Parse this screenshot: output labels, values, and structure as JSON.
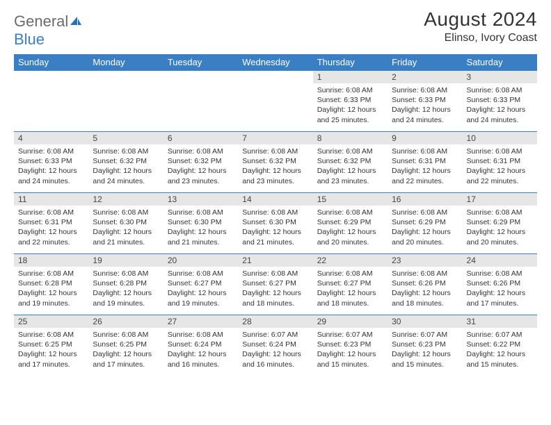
{
  "brand": {
    "part1": "General",
    "part2": "Blue"
  },
  "title": "August 2024",
  "location": "Elinso, Ivory Coast",
  "colors": {
    "header_bg": "#3a7fc4",
    "header_fg": "#ffffff",
    "daynum_bg": "#e6e6e6",
    "border": "#3a7fc4",
    "text": "#333333"
  },
  "weekdays": [
    "Sunday",
    "Monday",
    "Tuesday",
    "Wednesday",
    "Thursday",
    "Friday",
    "Saturday"
  ],
  "weeks": [
    [
      null,
      null,
      null,
      null,
      {
        "n": "1",
        "sr": "6:08 AM",
        "ss": "6:33 PM",
        "dl": "12 hours and 25 minutes."
      },
      {
        "n": "2",
        "sr": "6:08 AM",
        "ss": "6:33 PM",
        "dl": "12 hours and 24 minutes."
      },
      {
        "n": "3",
        "sr": "6:08 AM",
        "ss": "6:33 PM",
        "dl": "12 hours and 24 minutes."
      }
    ],
    [
      {
        "n": "4",
        "sr": "6:08 AM",
        "ss": "6:33 PM",
        "dl": "12 hours and 24 minutes."
      },
      {
        "n": "5",
        "sr": "6:08 AM",
        "ss": "6:32 PM",
        "dl": "12 hours and 24 minutes."
      },
      {
        "n": "6",
        "sr": "6:08 AM",
        "ss": "6:32 PM",
        "dl": "12 hours and 23 minutes."
      },
      {
        "n": "7",
        "sr": "6:08 AM",
        "ss": "6:32 PM",
        "dl": "12 hours and 23 minutes."
      },
      {
        "n": "8",
        "sr": "6:08 AM",
        "ss": "6:32 PM",
        "dl": "12 hours and 23 minutes."
      },
      {
        "n": "9",
        "sr": "6:08 AM",
        "ss": "6:31 PM",
        "dl": "12 hours and 22 minutes."
      },
      {
        "n": "10",
        "sr": "6:08 AM",
        "ss": "6:31 PM",
        "dl": "12 hours and 22 minutes."
      }
    ],
    [
      {
        "n": "11",
        "sr": "6:08 AM",
        "ss": "6:31 PM",
        "dl": "12 hours and 22 minutes."
      },
      {
        "n": "12",
        "sr": "6:08 AM",
        "ss": "6:30 PM",
        "dl": "12 hours and 21 minutes."
      },
      {
        "n": "13",
        "sr": "6:08 AM",
        "ss": "6:30 PM",
        "dl": "12 hours and 21 minutes."
      },
      {
        "n": "14",
        "sr": "6:08 AM",
        "ss": "6:30 PM",
        "dl": "12 hours and 21 minutes."
      },
      {
        "n": "15",
        "sr": "6:08 AM",
        "ss": "6:29 PM",
        "dl": "12 hours and 20 minutes."
      },
      {
        "n": "16",
        "sr": "6:08 AM",
        "ss": "6:29 PM",
        "dl": "12 hours and 20 minutes."
      },
      {
        "n": "17",
        "sr": "6:08 AM",
        "ss": "6:29 PM",
        "dl": "12 hours and 20 minutes."
      }
    ],
    [
      {
        "n": "18",
        "sr": "6:08 AM",
        "ss": "6:28 PM",
        "dl": "12 hours and 19 minutes."
      },
      {
        "n": "19",
        "sr": "6:08 AM",
        "ss": "6:28 PM",
        "dl": "12 hours and 19 minutes."
      },
      {
        "n": "20",
        "sr": "6:08 AM",
        "ss": "6:27 PM",
        "dl": "12 hours and 19 minutes."
      },
      {
        "n": "21",
        "sr": "6:08 AM",
        "ss": "6:27 PM",
        "dl": "12 hours and 18 minutes."
      },
      {
        "n": "22",
        "sr": "6:08 AM",
        "ss": "6:27 PM",
        "dl": "12 hours and 18 minutes."
      },
      {
        "n": "23",
        "sr": "6:08 AM",
        "ss": "6:26 PM",
        "dl": "12 hours and 18 minutes."
      },
      {
        "n": "24",
        "sr": "6:08 AM",
        "ss": "6:26 PM",
        "dl": "12 hours and 17 minutes."
      }
    ],
    [
      {
        "n": "25",
        "sr": "6:08 AM",
        "ss": "6:25 PM",
        "dl": "12 hours and 17 minutes."
      },
      {
        "n": "26",
        "sr": "6:08 AM",
        "ss": "6:25 PM",
        "dl": "12 hours and 17 minutes."
      },
      {
        "n": "27",
        "sr": "6:08 AM",
        "ss": "6:24 PM",
        "dl": "12 hours and 16 minutes."
      },
      {
        "n": "28",
        "sr": "6:07 AM",
        "ss": "6:24 PM",
        "dl": "12 hours and 16 minutes."
      },
      {
        "n": "29",
        "sr": "6:07 AM",
        "ss": "6:23 PM",
        "dl": "12 hours and 15 minutes."
      },
      {
        "n": "30",
        "sr": "6:07 AM",
        "ss": "6:23 PM",
        "dl": "12 hours and 15 minutes."
      },
      {
        "n": "31",
        "sr": "6:07 AM",
        "ss": "6:22 PM",
        "dl": "12 hours and 15 minutes."
      }
    ]
  ],
  "labels": {
    "sunrise": "Sunrise: ",
    "sunset": "Sunset: ",
    "daylight": "Daylight: "
  }
}
